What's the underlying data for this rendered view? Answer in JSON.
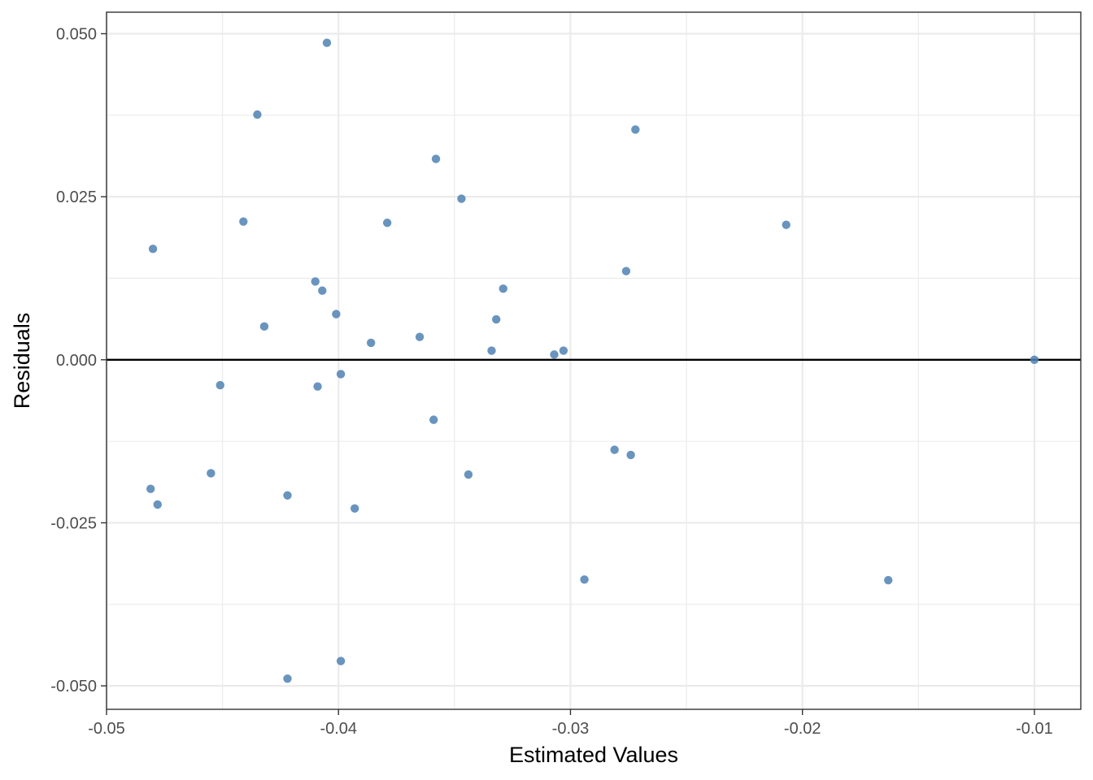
{
  "chart_data": {
    "type": "scatter",
    "title": "",
    "xlabel": "Estimated Values",
    "ylabel": "Residuals",
    "xlim": [
      -0.05,
      -0.008
    ],
    "ylim": [
      -0.0536,
      0.0533
    ],
    "x_ticks": [
      -0.05,
      -0.04,
      -0.03,
      -0.02,
      -0.01
    ],
    "x_tick_labels": [
      "-0.05",
      "-0.04",
      "-0.03",
      "-0.02",
      "-0.01"
    ],
    "y_ticks": [
      -0.05,
      -0.025,
      0.0,
      0.025,
      0.05
    ],
    "y_tick_labels": [
      "-0.050",
      "-0.025",
      "0.000",
      "0.025",
      "0.050"
    ],
    "x_minor": [
      -0.045,
      -0.035,
      -0.025,
      -0.015
    ],
    "y_minor": [
      -0.0375,
      -0.0125,
      0.0125,
      0.0375
    ],
    "grid": true,
    "reference_line": {
      "y": 0.0,
      "color": "#000000"
    },
    "point_color": "#4f81b3",
    "points": [
      {
        "x": -0.0405,
        "y": 0.0486
      },
      {
        "x": -0.0435,
        "y": 0.0376
      },
      {
        "x": -0.0272,
        "y": 0.0353
      },
      {
        "x": -0.0358,
        "y": 0.0308
      },
      {
        "x": -0.0347,
        "y": 0.0247
      },
      {
        "x": -0.0441,
        "y": 0.0212
      },
      {
        "x": -0.0379,
        "y": 0.021
      },
      {
        "x": -0.0207,
        "y": 0.0207
      },
      {
        "x": -0.048,
        "y": 0.017
      },
      {
        "x": -0.0276,
        "y": 0.0136
      },
      {
        "x": -0.041,
        "y": 0.012
      },
      {
        "x": -0.0407,
        "y": 0.0106
      },
      {
        "x": -0.0329,
        "y": 0.0109
      },
      {
        "x": -0.0401,
        "y": 0.007
      },
      {
        "x": -0.0332,
        "y": 0.0062
      },
      {
        "x": -0.0432,
        "y": 0.0051
      },
      {
        "x": -0.0365,
        "y": 0.0035
      },
      {
        "x": -0.0386,
        "y": 0.0026
      },
      {
        "x": -0.0334,
        "y": 0.0014
      },
      {
        "x": -0.0303,
        "y": 0.0014
      },
      {
        "x": -0.0307,
        "y": 0.0008
      },
      {
        "x": -0.01,
        "y": 0.0
      },
      {
        "x": -0.0399,
        "y": -0.0022
      },
      {
        "x": -0.0451,
        "y": -0.0039
      },
      {
        "x": -0.0409,
        "y": -0.0041
      },
      {
        "x": -0.0359,
        "y": -0.0092
      },
      {
        "x": -0.0281,
        "y": -0.0138
      },
      {
        "x": -0.0274,
        "y": -0.0146
      },
      {
        "x": -0.0455,
        "y": -0.0174
      },
      {
        "x": -0.0344,
        "y": -0.0176
      },
      {
        "x": -0.0481,
        "y": -0.0198
      },
      {
        "x": -0.0422,
        "y": -0.0208
      },
      {
        "x": -0.0478,
        "y": -0.0222
      },
      {
        "x": -0.0393,
        "y": -0.0228
      },
      {
        "x": -0.0294,
        "y": -0.0337
      },
      {
        "x": -0.0163,
        "y": -0.0338
      },
      {
        "x": -0.0399,
        "y": -0.0462
      },
      {
        "x": -0.0422,
        "y": -0.0489
      }
    ]
  }
}
